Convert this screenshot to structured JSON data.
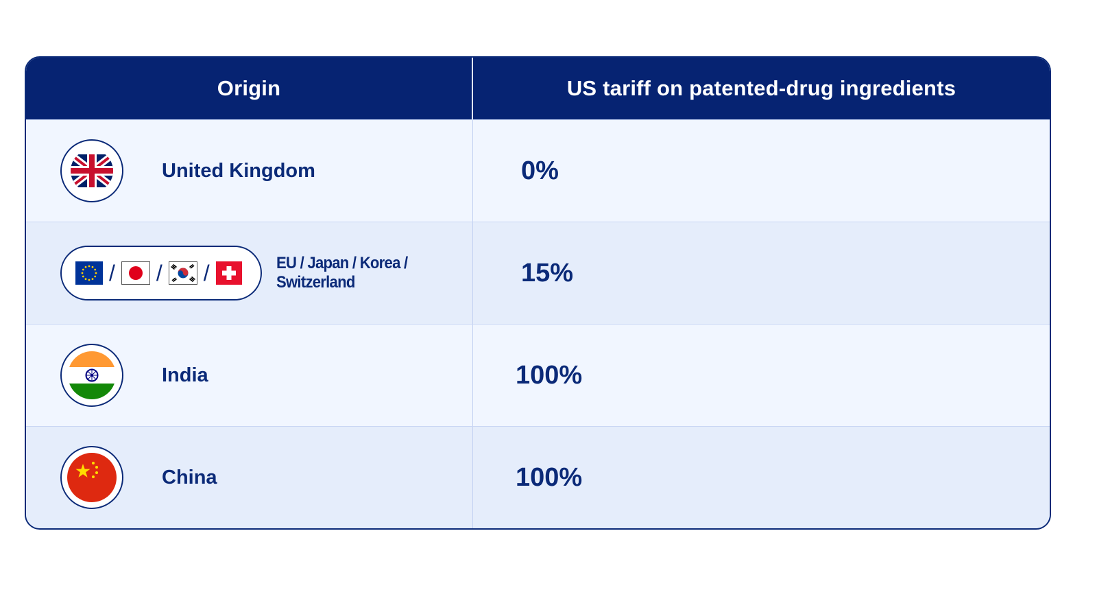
{
  "table": {
    "headers": {
      "origin": "Origin",
      "tariff": "US tariff on patented-drug ingredients"
    },
    "rows": [
      {
        "origin": "United Kingdom",
        "tariff": "0%",
        "flag_icon": "uk-flag-icon"
      },
      {
        "origin": "EU / Japan / Korea / Switzerland",
        "tariff": "15%",
        "separator": "/",
        "flag_icons": [
          "eu-flag-icon",
          "japan-flag-icon",
          "korea-flag-icon",
          "switzerland-flag-icon"
        ]
      },
      {
        "origin": "India",
        "tariff": "100%",
        "flag_icon": "india-flag-icon"
      },
      {
        "origin": "China",
        "tariff": "100%",
        "flag_icon": "china-flag-icon"
      }
    ]
  },
  "colors": {
    "header_bg": "#062372",
    "text": "#0b2a78",
    "row_light": "#f1f6ff",
    "row_dark": "#e5edfb"
  }
}
